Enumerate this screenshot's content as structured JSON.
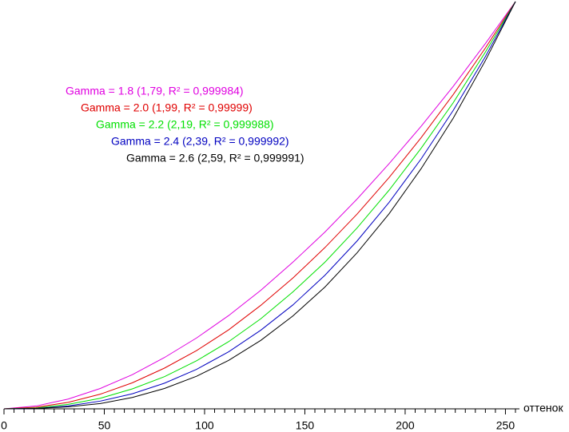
{
  "chart_data": {
    "type": "line",
    "x": [
      0,
      16,
      32,
      48,
      64,
      80,
      96,
      112,
      128,
      144,
      160,
      176,
      192,
      208,
      224,
      240,
      255
    ],
    "xlabel": "оттенок",
    "xlim": [
      0,
      255
    ],
    "xticks": [
      0,
      50,
      100,
      150,
      200,
      250
    ],
    "xminorticks": [
      5,
      10,
      15,
      20,
      25,
      30,
      35,
      40,
      45,
      55,
      60,
      65,
      70,
      75,
      80,
      85,
      90,
      95,
      105,
      110,
      115,
      120,
      125,
      130,
      135,
      140,
      145,
      155,
      160,
      165,
      170,
      175,
      180,
      185,
      190,
      195,
      205,
      210,
      215,
      220,
      225,
      230,
      235,
      240,
      245,
      255
    ],
    "ylim": [
      0,
      1
    ],
    "grid": false,
    "series": [
      {
        "name": "Gamma = 1.8 (1,79, R² = 0,999984)",
        "color": "#e000e0",
        "values": [
          0,
          0.007,
          0.024,
          0.05,
          0.084,
          0.126,
          0.174,
          0.229,
          0.291,
          0.36,
          0.434,
          0.515,
          0.602,
          0.694,
          0.792,
          0.897,
          1
        ]
      },
      {
        "name": "Gamma = 2.0 (1,99, R² = 0,99999)",
        "color": "#e00000",
        "values": [
          0,
          0.004,
          0.016,
          0.036,
          0.064,
          0.1,
          0.143,
          0.194,
          0.254,
          0.321,
          0.396,
          0.478,
          0.568,
          0.666,
          0.772,
          0.886,
          1
        ]
      },
      {
        "name": "Gamma = 2.2 (2,19, R² = 0,999988)",
        "color": "#00e000",
        "values": [
          0,
          0.002,
          0.011,
          0.026,
          0.049,
          0.079,
          0.118,
          0.165,
          0.221,
          0.287,
          0.36,
          0.444,
          0.537,
          0.64,
          0.752,
          0.876,
          1
        ]
      },
      {
        "name": "Gamma = 2.4 (2,39, R² = 0,999992)",
        "color": "#0000c0",
        "values": [
          0,
          0.001,
          0.007,
          0.019,
          0.037,
          0.063,
          0.097,
          0.14,
          0.193,
          0.255,
          0.328,
          0.412,
          0.507,
          0.614,
          0.733,
          0.865,
          1
        ]
      },
      {
        "name": "Gamma = 2.6 (2,59, R² = 0,999991)",
        "color": "#000000",
        "values": [
          0,
          0.001,
          0.005,
          0.013,
          0.028,
          0.05,
          0.08,
          0.119,
          0.168,
          0.228,
          0.299,
          0.383,
          0.479,
          0.59,
          0.714,
          0.855,
          1
        ]
      }
    ]
  }
}
